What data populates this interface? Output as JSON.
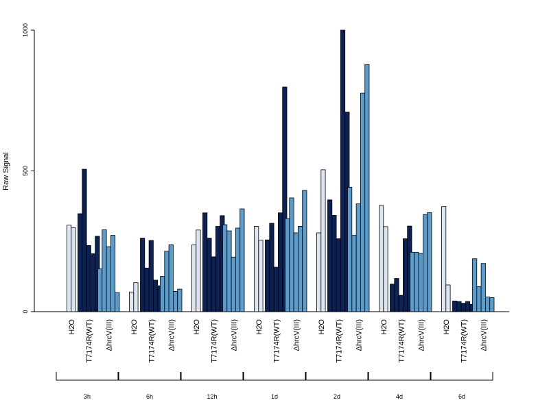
{
  "chart_data": {
    "type": "bar",
    "ylabel": "Raw Signal",
    "ylim": [
      0,
      1000
    ],
    "yticks": [
      "0",
      "500",
      "1000"
    ],
    "group_labels": [
      "H2O",
      "T7174R(WT)",
      "ΔhrcV(III)"
    ],
    "colors": {
      "H2O": "#dde6f0",
      "T7174R(WT)": "#0c2254",
      "ΔhrcV(III)": "#5a9ccc"
    },
    "timepoints": [
      {
        "label": "3h",
        "groups": [
          {
            "name": "H2O",
            "values": [
              308,
              298
            ]
          },
          {
            "name": "T7174R(WT)",
            "values": [
              348,
              506,
              235,
              206,
              268
            ]
          },
          {
            "name": "ΔhrcV(III)",
            "values": [
              152,
              291,
              231,
              271,
              68
            ]
          }
        ]
      },
      {
        "label": "6h",
        "groups": [
          {
            "name": "H2O",
            "values": [
              70,
              103
            ]
          },
          {
            "name": "T7174R(WT)",
            "values": [
              261,
              155,
              253,
              112,
              92
            ]
          },
          {
            "name": "ΔhrcV(III)",
            "values": [
              125,
              215,
              238,
              72,
              80
            ]
          }
        ]
      },
      {
        "label": "12h",
        "groups": [
          {
            "name": "H2O",
            "values": [
              237,
              290
            ]
          },
          {
            "name": "T7174R(WT)",
            "values": [
              351,
              261,
              195,
              303,
              341
            ]
          },
          {
            "name": "ΔhrcV(III)",
            "values": [
              309,
              287,
              194,
              297,
              365
            ]
          }
        ]
      },
      {
        "label": "1d",
        "groups": [
          {
            "name": "H2O",
            "values": [
              303,
              254
            ]
          },
          {
            "name": "T7174R(WT)",
            "values": [
              255,
              314,
              158,
              351,
              798
            ]
          },
          {
            "name": "ΔhrcV(III)",
            "values": [
              331,
              404,
              280,
              303,
              431
            ]
          }
        ]
      },
      {
        "label": "2d",
        "groups": [
          {
            "name": "H2O",
            "values": [
              280,
              504
            ]
          },
          {
            "name": "T7174R(WT)",
            "values": [
              397,
              342,
              259,
              1000,
              709
            ]
          },
          {
            "name": "ΔhrcV(III)",
            "values": [
              442,
              271,
              383,
              776,
              878
            ]
          }
        ]
      },
      {
        "label": "4d",
        "groups": [
          {
            "name": "H2O",
            "values": [
              377,
              302
            ]
          },
          {
            "name": "T7174R(WT)",
            "values": [
              98,
              118,
              58,
              259,
              304
            ]
          },
          {
            "name": "ΔhrcV(III)",
            "values": [
              211,
              211,
              207,
              345,
              352
            ]
          }
        ]
      },
      {
        "label": "6d",
        "groups": [
          {
            "name": "H2O",
            "values": [
              373,
              95
            ]
          },
          {
            "name": "T7174R(WT)",
            "values": [
              38,
              36,
              30,
              36,
              26
            ]
          },
          {
            "name": "ΔhrcV(III)",
            "values": [
              188,
              89,
              171,
              52,
              50
            ]
          }
        ]
      }
    ]
  }
}
